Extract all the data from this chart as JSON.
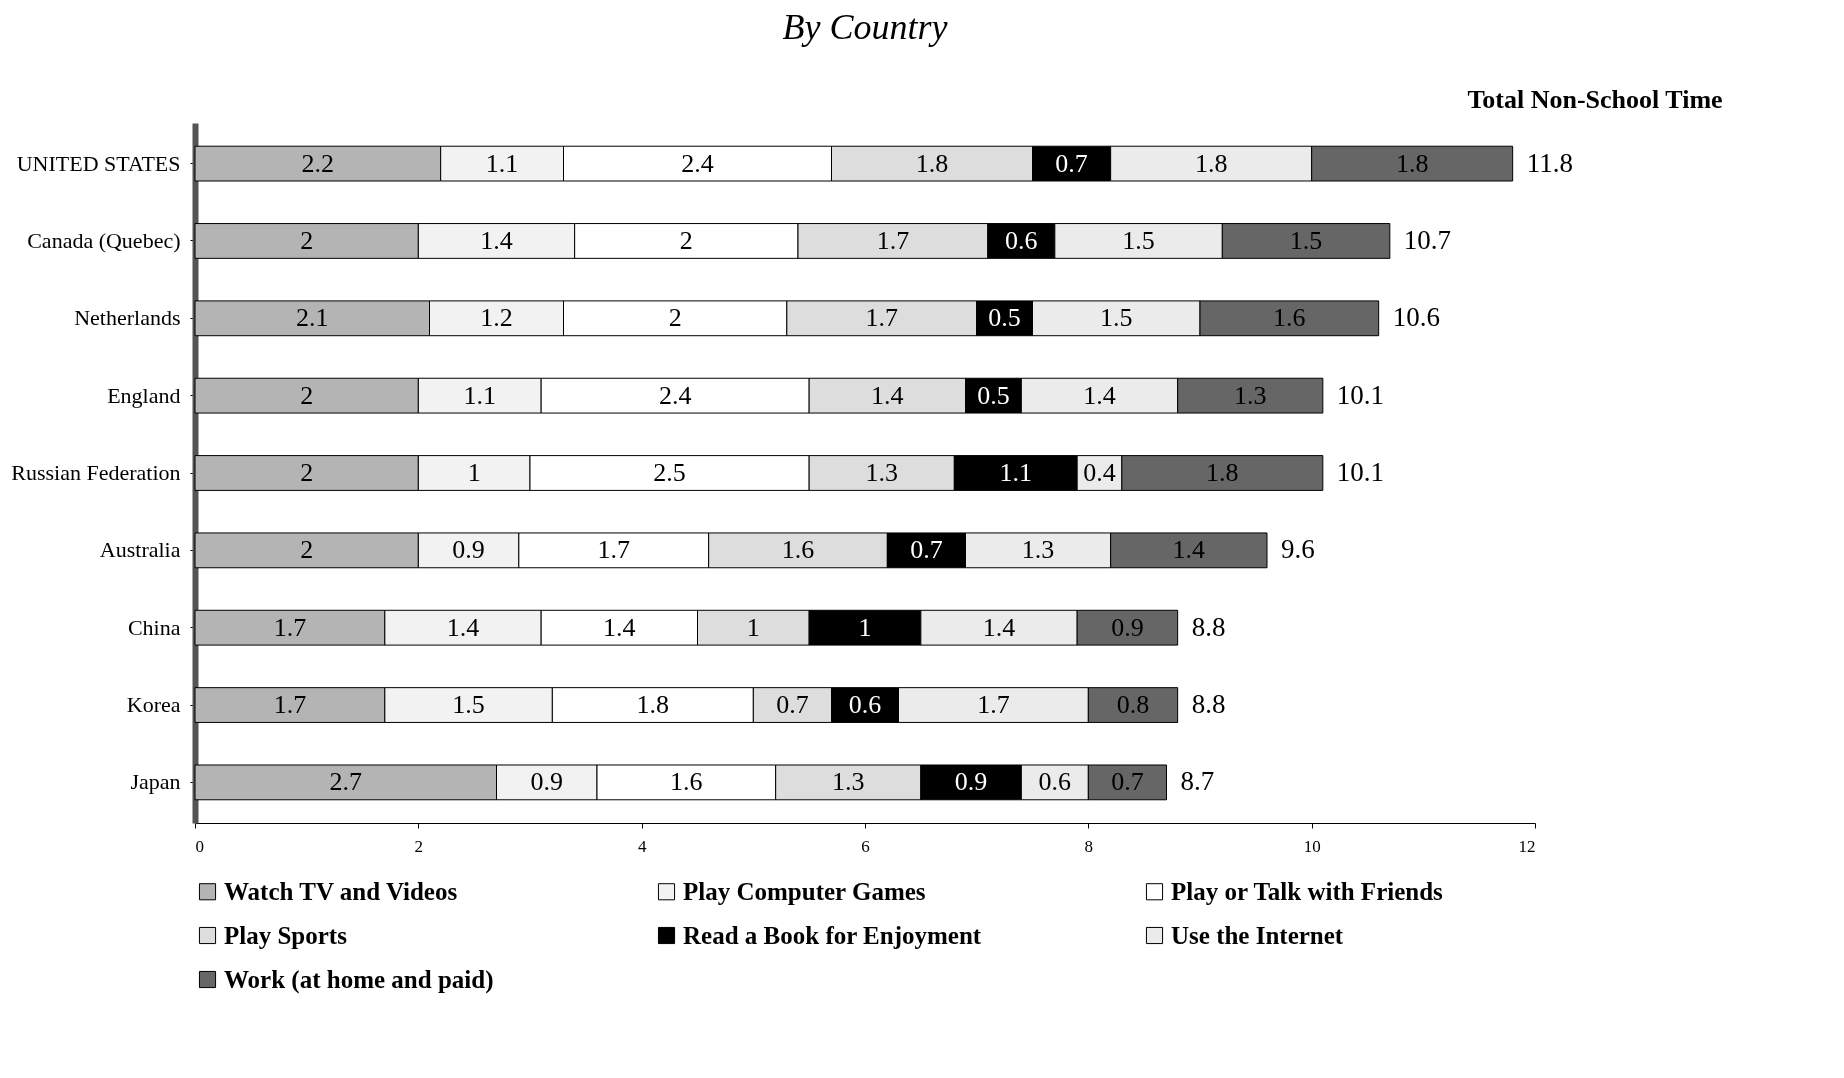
{
  "chart_data": {
    "type": "bar",
    "orientation": "horizontal",
    "stacked": true,
    "subtitle": "By Country",
    "annotations": [
      "Total Non-School Time"
    ],
    "categories": [
      "UNITED STATES",
      "Canada (Quebec)",
      "Netherlands",
      "England",
      "Russian Federation",
      "Australia",
      "China",
      "Korea",
      "Japan"
    ],
    "series": [
      {
        "name": "Watch TV and Videos",
        "color": "#b4b4b4",
        "values": [
          2.2,
          2,
          2.1,
          2,
          2,
          2,
          1.7,
          1.7,
          2.7
        ]
      },
      {
        "name": "Play Computer Games",
        "color": "#f2f2f2",
        "values": [
          1.1,
          1.4,
          1.2,
          1.1,
          1,
          0.9,
          1.4,
          1.5,
          0.9
        ]
      },
      {
        "name": "Play or Talk with Friends",
        "color": "#ffffff",
        "values": [
          2.4,
          2,
          2,
          2.4,
          2.5,
          1.7,
          1.4,
          1.8,
          1.6
        ]
      },
      {
        "name": "Play Sports",
        "color": "#dddddd",
        "values": [
          1.8,
          1.7,
          1.7,
          1.4,
          1.3,
          1.6,
          1,
          0.7,
          1.3
        ]
      },
      {
        "name": "Read a Book for Enjoyment",
        "color": "#000000",
        "values": [
          0.7,
          0.6,
          0.5,
          0.5,
          1.1,
          0.7,
          1,
          0.6,
          0.9
        ]
      },
      {
        "name": "Use the Internet",
        "color": "#ebebeb",
        "values": [
          1.8,
          1.5,
          1.5,
          1.4,
          0.4,
          1.3,
          1.4,
          1.7,
          0.6
        ]
      },
      {
        "name": "Work (at home and paid)",
        "color": "#666666",
        "values": [
          1.8,
          1.5,
          1.6,
          1.3,
          1.8,
          1.4,
          0.9,
          0.8,
          0.7
        ]
      }
    ],
    "totals": [
      "11.8",
      "10.7",
      "10.6",
      "10.1",
      "10.1",
      "9.6",
      "8.8",
      "8.8",
      "8.7"
    ],
    "xlim": [
      0,
      12
    ],
    "xticks": [
      0,
      2,
      4,
      6,
      8,
      10,
      12
    ],
    "data_labels": true,
    "grid": false,
    "legend": "bottom"
  }
}
